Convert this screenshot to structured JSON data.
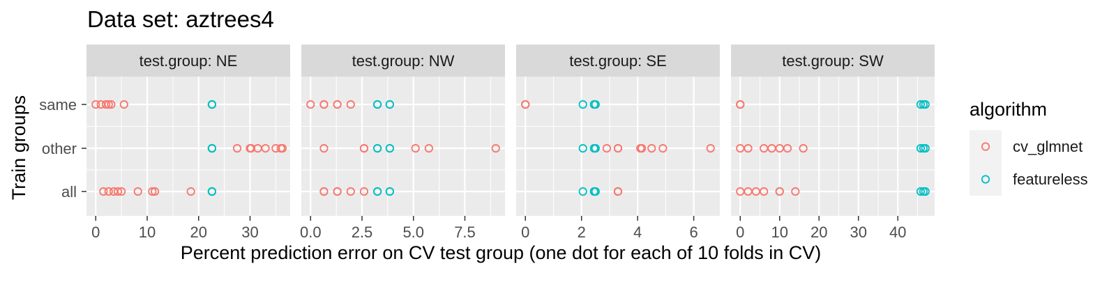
{
  "chart_data": {
    "type": "scatter",
    "title": "Data set: aztrees4",
    "xlabel": "Percent prediction error on CV test group (one dot for each of 10 folds in CV)",
    "ylabel": "Train groups",
    "y_categories": [
      "same",
      "other",
      "all"
    ],
    "grid": true,
    "legend": {
      "title": "algorithm",
      "placement": "right",
      "entries": [
        {
          "name": "cv_glmnet",
          "color": "#F8766D"
        },
        {
          "name": "featureless",
          "color": "#00BFC4"
        }
      ]
    },
    "panels": [
      {
        "strip": "test.group: NE",
        "xlim": [
          -1.8,
          37.8
        ],
        "ticks": [
          0,
          10,
          20,
          30
        ],
        "tick_labels": [
          "0",
          "10",
          "20",
          "30"
        ],
        "series": [
          {
            "name": "cv_glmnet",
            "points": {
              "same": [
                0,
                1,
                2,
                2.5,
                3,
                5.5
              ],
              "other": [
                27.5,
                30,
                30.2,
                31.5,
                33,
                35,
                36,
                36.3
              ],
              "all": [
                1.5,
                2.5,
                3.5,
                4.3,
                5,
                8.2,
                11,
                11.5,
                18.5
              ]
            }
          },
          {
            "name": "featureless",
            "points": {
              "same": [
                22.6,
                22.6,
                22.6,
                22.6
              ],
              "other": [
                22.6,
                22.6,
                22.6,
                22.6
              ],
              "all": [
                22.6,
                22.6,
                22.6,
                22.6
              ]
            }
          }
        ]
      },
      {
        "strip": "test.group: NW",
        "xlim": [
          -0.45,
          9.45
        ],
        "ticks": [
          0,
          2.5,
          5,
          7.5
        ],
        "tick_labels": [
          "0.0",
          "2.5",
          "5.0",
          "7.5"
        ],
        "series": [
          {
            "name": "cv_glmnet",
            "points": {
              "same": [
                0,
                0.65,
                0.65,
                1.3,
                1.3,
                1.95
              ],
              "other": [
                0.65,
                2.6,
                2.6,
                5.1,
                5.75,
                9
              ],
              "all": [
                0.65,
                0.65,
                1.3,
                1.3,
                1.95,
                2.6
              ]
            }
          },
          {
            "name": "featureless",
            "points": {
              "same": [
                3.25,
                3.25,
                3.85,
                3.85
              ],
              "other": [
                3.25,
                3.25,
                3.85,
                3.85
              ],
              "all": [
                3.25,
                3.25,
                3.85,
                3.85
              ]
            }
          }
        ]
      },
      {
        "strip": "test.group: SE",
        "xlim": [
          -0.33,
          6.93
        ],
        "ticks": [
          0,
          2,
          4,
          6
        ],
        "tick_labels": [
          "0",
          "2",
          "4",
          "6"
        ],
        "series": [
          {
            "name": "cv_glmnet",
            "points": {
              "same": [
                0,
                0,
                0
              ],
              "other": [
                2.9,
                3.3,
                3.3,
                4.1,
                4.15,
                4.5,
                4.9,
                6.6
              ],
              "all": [
                3.3,
                3.3,
                3.3
              ]
            }
          },
          {
            "name": "featureless",
            "points": {
              "same": [
                2.05,
                2.45,
                2.45,
                2.5
              ],
              "other": [
                2.05,
                2.45,
                2.45,
                2.5
              ],
              "all": [
                2.05,
                2.45,
                2.45,
                2.5
              ]
            }
          }
        ]
      },
      {
        "strip": "test.group: SW",
        "xlim": [
          -2.35,
          49.35
        ],
        "ticks": [
          0,
          10,
          20,
          30,
          40
        ],
        "tick_labels": [
          "0",
          "10",
          "20",
          "30",
          "40"
        ],
        "series": [
          {
            "name": "cv_glmnet",
            "points": {
              "same": [
                0,
                0,
                0
              ],
              "other": [
                0,
                2,
                6,
                8,
                10,
                12,
                16
              ],
              "all": [
                0,
                2,
                4,
                6,
                10,
                10,
                14
              ]
            }
          },
          {
            "name": "featureless",
            "points": {
              "same": [
                45.8,
                46.5,
                47
              ],
              "other": [
                45.8,
                46.5,
                47
              ],
              "all": [
                45.8,
                46.5,
                47
              ]
            }
          }
        ]
      }
    ]
  }
}
